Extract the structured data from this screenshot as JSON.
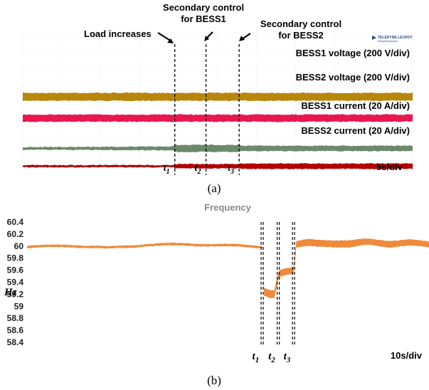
{
  "chart_data": [
    {
      "type": "line",
      "panel": "(a)",
      "annotations": {
        "load": "Load increases",
        "sec1": [
          "Secondary control",
          "for BESS1"
        ],
        "sec2": [
          "Secondary control",
          "for BESS2"
        ]
      },
      "brand": {
        "name": "TELEDYNE LECROY",
        "sub": "Everywhereyoulook"
      },
      "timebase": "5s/div",
      "events": [
        {
          "label": "t",
          "sub": "1",
          "time_div": 3.9
        },
        {
          "label": "t",
          "sub": "2",
          "time_div": 4.7
        },
        {
          "label": "t",
          "sub": "3",
          "time_div": 5.55
        }
      ],
      "divisions": 10,
      "series": [
        {
          "name": "BESS1 voltage (200 V/div)",
          "color": "#b8860b",
          "level_div": 4.4,
          "halfband_div": [
            0.22,
            0.22,
            0.22,
            0.22
          ]
        },
        {
          "name": "BESS2 voltage (200 V/div)",
          "color": "#e8174f",
          "level_div": 3.2,
          "halfband_div": [
            0.2,
            0.2,
            0.2,
            0.2
          ]
        },
        {
          "name": "BESS1 current (20 A/div)",
          "color": "#6b8a6b",
          "level_div": 1.5,
          "halfband_div": [
            0.09,
            0.2,
            0.2,
            0.15
          ]
        },
        {
          "name": "BESS2 current (20 A/div)",
          "color": "#b30000",
          "level_div": 0.5,
          "halfband_div": [
            0.06,
            0.12,
            0.12,
            0.15
          ]
        }
      ]
    },
    {
      "type": "line",
      "panel": "(b)",
      "title": "Frequency",
      "ylabel": "Hz",
      "ylim": [
        58.4,
        60.4
      ],
      "yticks": [
        "60.4",
        "60.2",
        "60",
        "59.8",
        "59.6",
        "59.4",
        "59.2",
        "59",
        "58.8",
        "58.6",
        "58.4"
      ],
      "timebase": "10s/div",
      "events": [
        {
          "label": "t",
          "sub": "1",
          "x_frac": 0.585
        },
        {
          "label": "t",
          "sub": "2",
          "x_frac": 0.625
        },
        {
          "label": "t",
          "sub": "3",
          "x_frac": 0.663
        }
      ],
      "series": [
        {
          "name": "Frequency",
          "color": "#ee8a3a",
          "x": [
            0.0,
            0.1,
            0.2,
            0.3,
            0.4,
            0.5,
            0.585,
            0.59,
            0.6,
            0.615,
            0.625,
            0.63,
            0.645,
            0.663,
            0.67,
            0.7,
            0.75,
            0.8,
            0.85,
            0.9,
            0.95,
            1.0
          ],
          "y": [
            59.98,
            60.01,
            59.97,
            60.02,
            60.03,
            60.01,
            59.99,
            59.25,
            59.22,
            59.2,
            59.5,
            59.55,
            59.57,
            59.58,
            60.02,
            60.06,
            60.05,
            60.03,
            60.07,
            60.04,
            60.06,
            60.02
          ],
          "band": [
            0.04,
            0.04,
            0.04,
            0.04,
            0.04,
            0.04,
            0.04,
            0.13,
            0.13,
            0.13,
            0.11,
            0.11,
            0.11,
            0.11,
            0.1,
            0.12,
            0.11,
            0.12,
            0.1,
            0.11,
            0.1,
            0.1
          ]
        }
      ]
    }
  ]
}
